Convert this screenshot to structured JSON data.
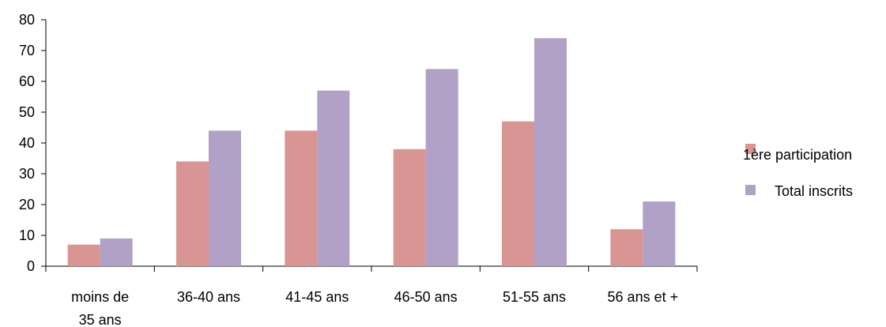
{
  "chart_data": {
    "type": "bar",
    "categories": [
      [
        "moins de",
        "35 ans"
      ],
      [
        "36-40 ans"
      ],
      [
        "41-45 ans"
      ],
      [
        "46-50 ans"
      ],
      [
        "51-55 ans"
      ],
      [
        "56 ans et +"
      ]
    ],
    "series": [
      {
        "name": "1ère participation",
        "color": "#d99594",
        "values": [
          7,
          34,
          44,
          38,
          47,
          12
        ]
      },
      {
        "name": "Total inscrits",
        "color": "#b2a1c7",
        "values": [
          9,
          44,
          57,
          64,
          74,
          21
        ]
      }
    ],
    "ylim": [
      0,
      80
    ],
    "yticks": [
      0,
      10,
      20,
      30,
      40,
      50,
      60,
      70,
      80
    ],
    "grid": false,
    "legend_position": "right"
  }
}
